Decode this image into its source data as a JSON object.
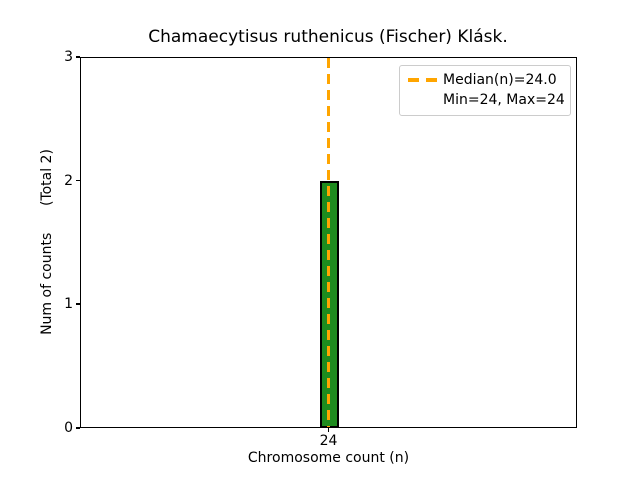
{
  "figure": {
    "background": "#ffffff"
  },
  "colors": {
    "bar_fill": "#1e8b1e",
    "bar_edge": "#000000",
    "median_dash": "#ffa500",
    "legend_border": "#cccccc",
    "axis": "#000000",
    "text": "#000000"
  },
  "legend": {
    "entries": [
      {
        "label": "Median(n)=24.0",
        "marker": "orange-dashed-line"
      },
      {
        "label": "Min=24, Max=24",
        "marker": "none"
      }
    ],
    "position": "upper right"
  },
  "chart_data": {
    "type": "bar",
    "title": "Chamaecytisus ruthenicus (Fischer) Klásk.",
    "xlabel": "Chromosome count (n)",
    "ylabel": "Num of counts      (Total 2)",
    "categories": [
      "24"
    ],
    "values": [
      2
    ],
    "ylim": [
      0,
      3
    ],
    "yticks": [
      0,
      1,
      2,
      3
    ],
    "xticks": [
      "24"
    ],
    "grid": false,
    "bar_color": "#1e8b1e",
    "bar_edge_color": "#000000",
    "median_line": {
      "value": 24.0,
      "color": "#ffa500",
      "style": "dashed",
      "orientation": "vertical"
    },
    "stats": {
      "median": 24.0,
      "min": 24,
      "max": 24,
      "total_counts": 2
    },
    "legend_entries": [
      "Median(n)=24.0",
      "Min=24, Max=24"
    ],
    "legend_position": "upper right"
  }
}
